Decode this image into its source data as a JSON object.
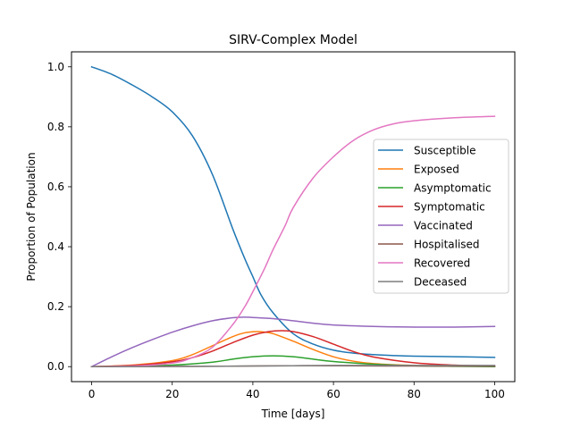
{
  "chart_data": {
    "type": "line",
    "title": "SIRV-Complex Model",
    "xlabel": "Time [days]",
    "ylabel": "Proportion of Population",
    "xlim": [
      -5,
      105
    ],
    "ylim": [
      -0.05,
      1.05
    ],
    "xticks": [
      0,
      20,
      40,
      60,
      80,
      100
    ],
    "xtick_labels": [
      "0",
      "20",
      "40",
      "60",
      "80",
      "100"
    ],
    "yticks": [
      0.0,
      0.2,
      0.4,
      0.6,
      0.8,
      1.0
    ],
    "ytick_labels": [
      "0.0",
      "0.2",
      "0.4",
      "0.6",
      "0.8",
      "1.0"
    ],
    "grid": false,
    "legend_position": "center-right",
    "series": [
      {
        "name": "Susceptible",
        "color": "#1f77b4",
        "x": [
          0,
          5,
          10,
          15,
          20,
          25,
          30,
          35,
          38,
          40,
          42,
          45,
          50,
          55,
          60,
          65,
          70,
          75,
          80,
          90,
          100
        ],
        "y": [
          1.0,
          0.975,
          0.94,
          0.9,
          0.85,
          0.77,
          0.64,
          0.46,
          0.36,
          0.3,
          0.24,
          0.18,
          0.11,
          0.075,
          0.055,
          0.045,
          0.04,
          0.037,
          0.035,
          0.033,
          0.031
        ]
      },
      {
        "name": "Exposed",
        "color": "#ff7f0e",
        "x": [
          0,
          10,
          20,
          25,
          30,
          35,
          38,
          41,
          43,
          45,
          50,
          55,
          60,
          65,
          70,
          80,
          90,
          100
        ],
        "y": [
          0.0,
          0.005,
          0.02,
          0.04,
          0.07,
          0.1,
          0.113,
          0.117,
          0.115,
          0.11,
          0.085,
          0.057,
          0.033,
          0.018,
          0.01,
          0.004,
          0.002,
          0.001
        ]
      },
      {
        "name": "Asymptomatic",
        "color": "#2ca02c",
        "x": [
          0,
          10,
          20,
          30,
          35,
          40,
          45,
          50,
          55,
          60,
          70,
          80,
          90,
          100
        ],
        "y": [
          0.0,
          0.001,
          0.005,
          0.015,
          0.025,
          0.033,
          0.036,
          0.033,
          0.025,
          0.017,
          0.008,
          0.003,
          0.001,
          0.0
        ]
      },
      {
        "name": "Symptomatic",
        "color": "#d62728",
        "x": [
          0,
          10,
          20,
          25,
          30,
          35,
          40,
          44,
          47,
          50,
          55,
          60,
          65,
          70,
          80,
          90,
          100
        ],
        "y": [
          0.0,
          0.004,
          0.016,
          0.03,
          0.052,
          0.08,
          0.105,
          0.117,
          0.12,
          0.117,
          0.1,
          0.075,
          0.05,
          0.032,
          0.013,
          0.005,
          0.002
        ]
      },
      {
        "name": "Vaccinated",
        "color": "#9467bd",
        "x": [
          0,
          5,
          10,
          15,
          20,
          25,
          30,
          35,
          38,
          40,
          45,
          50,
          55,
          60,
          70,
          80,
          90,
          100
        ],
        "y": [
          0.0,
          0.033,
          0.063,
          0.09,
          0.115,
          0.136,
          0.153,
          0.163,
          0.165,
          0.164,
          0.16,
          0.153,
          0.145,
          0.139,
          0.134,
          0.132,
          0.132,
          0.134
        ]
      },
      {
        "name": "Hospitalised",
        "color": "#8c564b",
        "x": [
          0,
          20,
          40,
          50,
          60,
          80,
          100
        ],
        "y": [
          0.0,
          0.0005,
          0.002,
          0.003,
          0.003,
          0.002,
          0.0015
        ]
      },
      {
        "name": "Recovered",
        "color": "#e377c2",
        "x": [
          0,
          10,
          20,
          25,
          30,
          35,
          38,
          40,
          43,
          45,
          48,
          50,
          55,
          60,
          65,
          70,
          75,
          80,
          90,
          100
        ],
        "y": [
          0.0,
          0.002,
          0.012,
          0.03,
          0.065,
          0.14,
          0.2,
          0.25,
          0.33,
          0.39,
          0.47,
          0.53,
          0.63,
          0.7,
          0.755,
          0.79,
          0.81,
          0.82,
          0.83,
          0.835
        ]
      },
      {
        "name": "Deceased",
        "color": "#7f7f7f",
        "x": [
          0,
          20,
          40,
          50,
          60,
          80,
          100
        ],
        "y": [
          0.0,
          0.0005,
          0.002,
          0.003,
          0.004,
          0.004,
          0.004
        ]
      }
    ]
  }
}
